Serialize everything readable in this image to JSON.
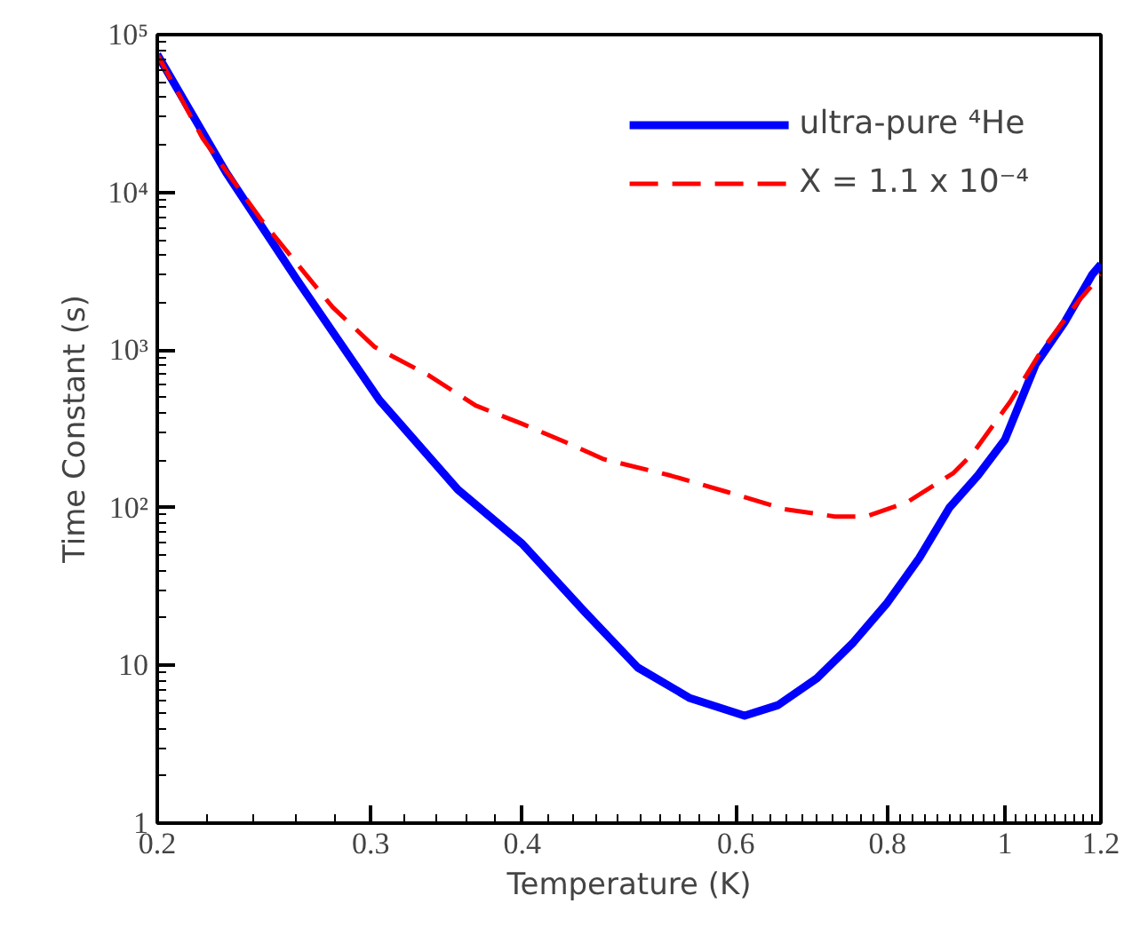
{
  "chart_data": {
    "type": "line",
    "xlabel": "Temperature (K)",
    "ylabel": "Time Constant (s)",
    "log": "xy",
    "grid": false,
    "legend": "top right",
    "marker": "none",
    "xlim": [
      0.2,
      1.2
    ],
    "ylim": [
      1,
      100000
    ],
    "xticks": [
      0.2,
      0.3,
      0.4,
      0.6,
      0.8,
      1,
      1.2
    ],
    "yticks": [
      1,
      10,
      {
        "value": 100,
        "label": "10²"
      },
      {
        "value": 1000,
        "label": "10³"
      },
      {
        "value": 10000,
        "label": "10⁴"
      },
      {
        "value": 100000,
        "label": "10⁵"
      }
    ],
    "series": [
      {
        "name": "ultra-pure ⁴He",
        "color": "#0000ff",
        "line_style": "solid",
        "x": [
          0.2,
          0.228,
          0.261,
          0.305,
          0.354,
          0.4,
          0.45,
          0.498,
          0.55,
          0.61,
          0.65,
          0.7,
          0.75,
          0.8,
          0.85,
          0.9,
          0.95,
          1.0,
          1.06,
          1.12,
          1.18,
          1.2
        ],
        "values": [
          75000,
          13300,
          2760,
          480,
          130,
          59,
          22,
          9.7,
          6.2,
          4.8,
          5.6,
          8.3,
          14,
          25,
          48,
          100,
          160,
          270,
          810,
          1500,
          3000,
          3500
        ]
      },
      {
        "name": "X = 1.1 x 10⁻⁴",
        "color": "#ff0000",
        "line_style": "dashed",
        "x": [
          0.2,
          0.218,
          0.244,
          0.279,
          0.302,
          0.335,
          0.366,
          0.4,
          0.433,
          0.467,
          0.53,
          0.59,
          0.658,
          0.724,
          0.768,
          0.83,
          0.906,
          0.94,
          1.01,
          1.07,
          1.15,
          1.2
        ],
        "values": [
          75000,
          22000,
          6600,
          1870,
          1050,
          690,
          445,
          340,
          263,
          203,
          160,
          126,
          98,
          88,
          88,
          108,
          165,
          219,
          470,
          970,
          2040,
          3000
        ]
      }
    ]
  }
}
